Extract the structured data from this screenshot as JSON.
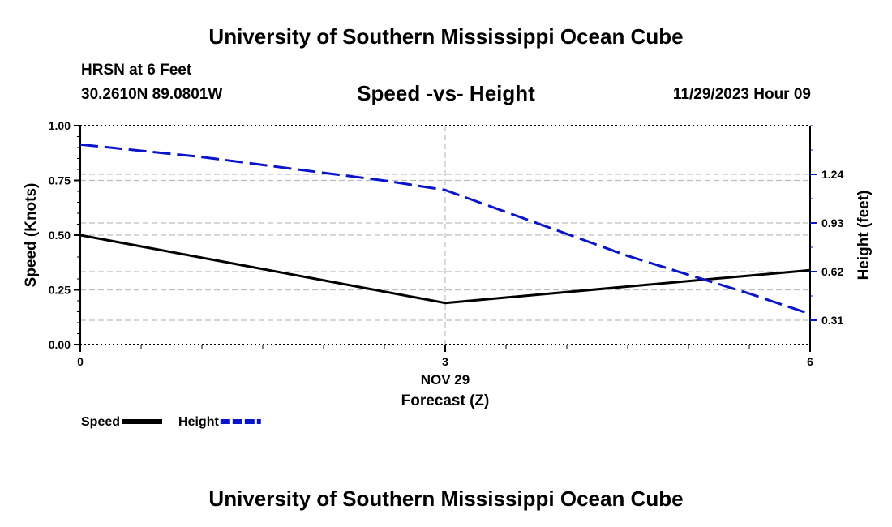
{
  "header": {
    "main_title": "University of Southern Mississippi Ocean Cube",
    "station": "HRSN at 6 Feet",
    "coords": "30.2610N  89.0801W",
    "chart_title": "Speed -vs- Height",
    "datestamp": "11/29/2023 Hour 09"
  },
  "footer": {
    "title": "University of Southern Mississippi Ocean Cube"
  },
  "chart_data": {
    "type": "line",
    "title": "Speed -vs- Height",
    "xlabel": "Forecast (Z)",
    "x_date_label": "NOV 29",
    "ylabel": "Speed (Knots)",
    "y2label": "Height (feet)",
    "x": [
      0,
      3,
      6
    ],
    "x_ticks": [
      "0",
      "3",
      "6"
    ],
    "xlim": [
      0,
      6
    ],
    "ylim": [
      0,
      1
    ],
    "y_ticks": [
      "0.00",
      "0.25",
      "0.50",
      "0.75",
      "1.00"
    ],
    "y2lim": [
      0.155,
      1.55
    ],
    "y2_ticks": [
      "0.31",
      "0.62",
      "0.93",
      "1.24"
    ],
    "grid": true,
    "legend_position": "bottom-left",
    "series": [
      {
        "name": "Speed",
        "axis": "left",
        "color": "#000000",
        "style": "solid",
        "x": [
          0,
          3,
          6
        ],
        "values": [
          0.5,
          0.19,
          0.34
        ]
      },
      {
        "name": "Height",
        "axis": "right",
        "color": "#0a14c8",
        "style": "dashed",
        "x": [
          0,
          0.5,
          1,
          1.5,
          2,
          2.5,
          3,
          3.5,
          4,
          4.5,
          5,
          5.5,
          6
        ],
        "values": [
          1.43,
          1.39,
          1.35,
          1.3,
          1.25,
          1.2,
          1.14,
          1.0,
          0.86,
          0.72,
          0.6,
          0.48,
          0.35
        ]
      }
    ]
  }
}
